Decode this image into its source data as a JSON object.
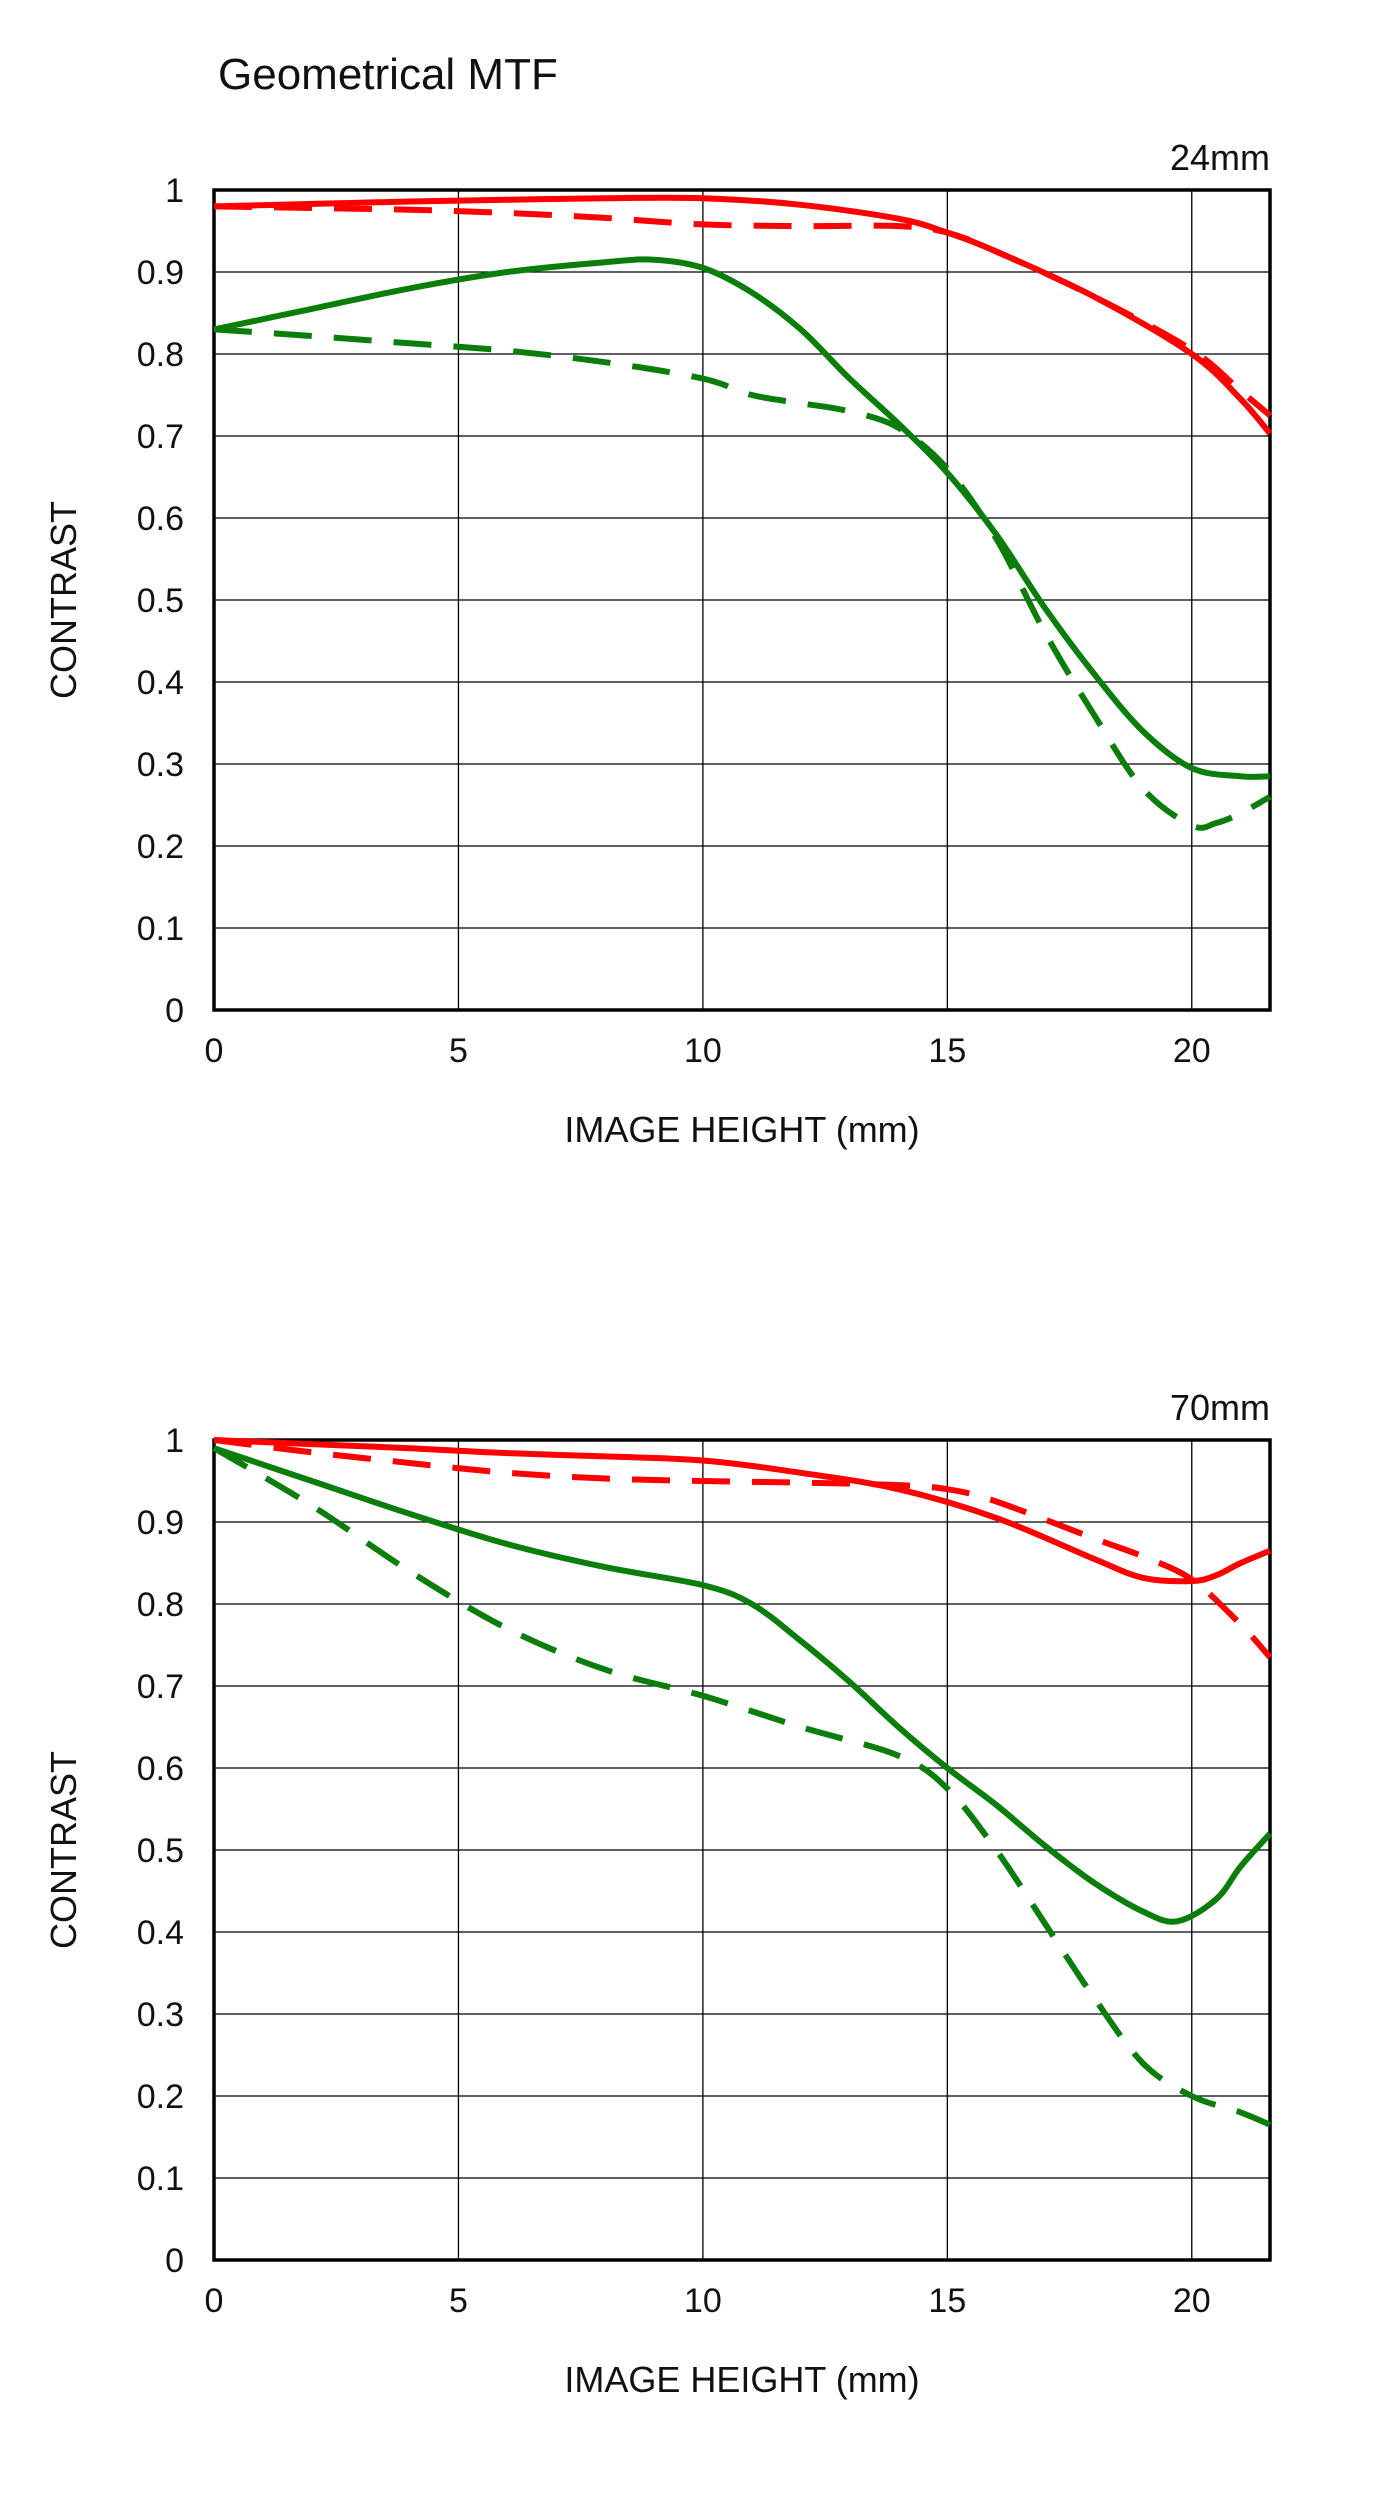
{
  "title": "Geometrical MTF",
  "colors": {
    "red": "#ff0000",
    "green": "#0b7d0b",
    "grid": "#000000"
  },
  "chart_data": [
    {
      "type": "line",
      "focal_label": "24mm",
      "xlabel": "IMAGE HEIGHT (mm)",
      "ylabel": "CONTRAST",
      "xlim": [
        0,
        21.6
      ],
      "ylim": [
        0,
        1
      ],
      "xticks": [
        "0",
        "5",
        "10",
        "15",
        "20"
      ],
      "yticks": [
        "0",
        "0.1",
        "0.2",
        "0.3",
        "0.4",
        "0.5",
        "0.6",
        "0.7",
        "0.8",
        "0.9",
        "1"
      ],
      "grid": true,
      "series": [
        {
          "color": "red",
          "style": "solid",
          "x": [
            0,
            2,
            4,
            6,
            8,
            10,
            12,
            14,
            15,
            16,
            18,
            20,
            21,
            21.6
          ],
          "y": [
            0.98,
            0.983,
            0.986,
            0.988,
            0.99,
            0.99,
            0.982,
            0.965,
            0.948,
            0.925,
            0.87,
            0.8,
            0.745,
            0.703
          ]
        },
        {
          "color": "red",
          "style": "dashed",
          "x": [
            0,
            2,
            4,
            6,
            8,
            10,
            12,
            14,
            15,
            16,
            18,
            20,
            21,
            21.6
          ],
          "y": [
            0.98,
            0.978,
            0.976,
            0.972,
            0.966,
            0.958,
            0.956,
            0.956,
            0.948,
            0.925,
            0.87,
            0.805,
            0.755,
            0.725
          ]
        },
        {
          "color": "green",
          "style": "solid",
          "x": [
            0,
            2,
            4,
            6,
            8,
            9,
            10,
            11,
            12,
            13,
            14,
            15,
            16,
            17,
            18,
            19,
            20,
            21,
            21.6
          ],
          "y": [
            0.83,
            0.855,
            0.88,
            0.9,
            0.912,
            0.915,
            0.905,
            0.875,
            0.83,
            0.77,
            0.715,
            0.655,
            0.58,
            0.49,
            0.41,
            0.34,
            0.295,
            0.285,
            0.285
          ]
        },
        {
          "color": "green",
          "style": "dashed",
          "x": [
            0,
            2,
            4,
            6,
            8,
            10,
            11,
            12,
            13,
            14,
            15,
            16,
            17,
            18,
            19,
            20,
            20.5,
            21,
            21.6
          ],
          "y": [
            0.83,
            0.822,
            0.813,
            0.804,
            0.79,
            0.77,
            0.75,
            0.74,
            0.73,
            0.71,
            0.66,
            0.575,
            0.46,
            0.36,
            0.27,
            0.225,
            0.228,
            0.24,
            0.26
          ]
        }
      ]
    },
    {
      "type": "line",
      "focal_label": "70mm",
      "xlabel": "IMAGE HEIGHT (mm)",
      "ylabel": "CONTRAST",
      "xlim": [
        0,
        21.6
      ],
      "ylim": [
        0,
        1
      ],
      "xticks": [
        "0",
        "5",
        "10",
        "15",
        "20"
      ],
      "yticks": [
        "0",
        "0.1",
        "0.2",
        "0.3",
        "0.4",
        "0.5",
        "0.6",
        "0.7",
        "0.8",
        "0.9",
        "1"
      ],
      "grid": true,
      "series": [
        {
          "color": "red",
          "style": "solid",
          "x": [
            0,
            2,
            4,
            6,
            8,
            10,
            12,
            14,
            16,
            18,
            19,
            20,
            20.5,
            21,
            21.6
          ],
          "y": [
            1.0,
            0.995,
            0.99,
            0.984,
            0.98,
            0.975,
            0.96,
            0.94,
            0.905,
            0.855,
            0.832,
            0.828,
            0.835,
            0.85,
            0.865
          ]
        },
        {
          "color": "red",
          "style": "dashed",
          "x": [
            0,
            2,
            4,
            6,
            8,
            10,
            12,
            14,
            15,
            16,
            18,
            19,
            20,
            21,
            21.6
          ],
          "y": [
            1.0,
            0.985,
            0.972,
            0.96,
            0.953,
            0.95,
            0.948,
            0.945,
            0.94,
            0.925,
            0.88,
            0.858,
            0.83,
            0.775,
            0.735
          ]
        },
        {
          "color": "green",
          "style": "solid",
          "x": [
            0,
            2,
            4,
            6,
            8,
            10,
            11,
            12,
            13,
            14,
            15,
            16,
            17,
            18,
            19,
            19.7,
            20.5,
            21,
            21.6
          ],
          "y": [
            0.99,
            0.95,
            0.91,
            0.873,
            0.845,
            0.823,
            0.8,
            0.755,
            0.705,
            0.65,
            0.6,
            0.555,
            0.505,
            0.46,
            0.425,
            0.413,
            0.44,
            0.48,
            0.52
          ]
        },
        {
          "color": "green",
          "style": "dashed",
          "x": [
            0,
            2,
            4,
            6,
            8,
            10,
            12,
            14,
            15,
            16,
            17,
            18,
            19,
            20,
            21,
            21.6
          ],
          "y": [
            0.99,
            0.92,
            0.84,
            0.77,
            0.72,
            0.688,
            0.65,
            0.615,
            0.575,
            0.5,
            0.41,
            0.32,
            0.24,
            0.2,
            0.18,
            0.165
          ]
        }
      ]
    }
  ]
}
